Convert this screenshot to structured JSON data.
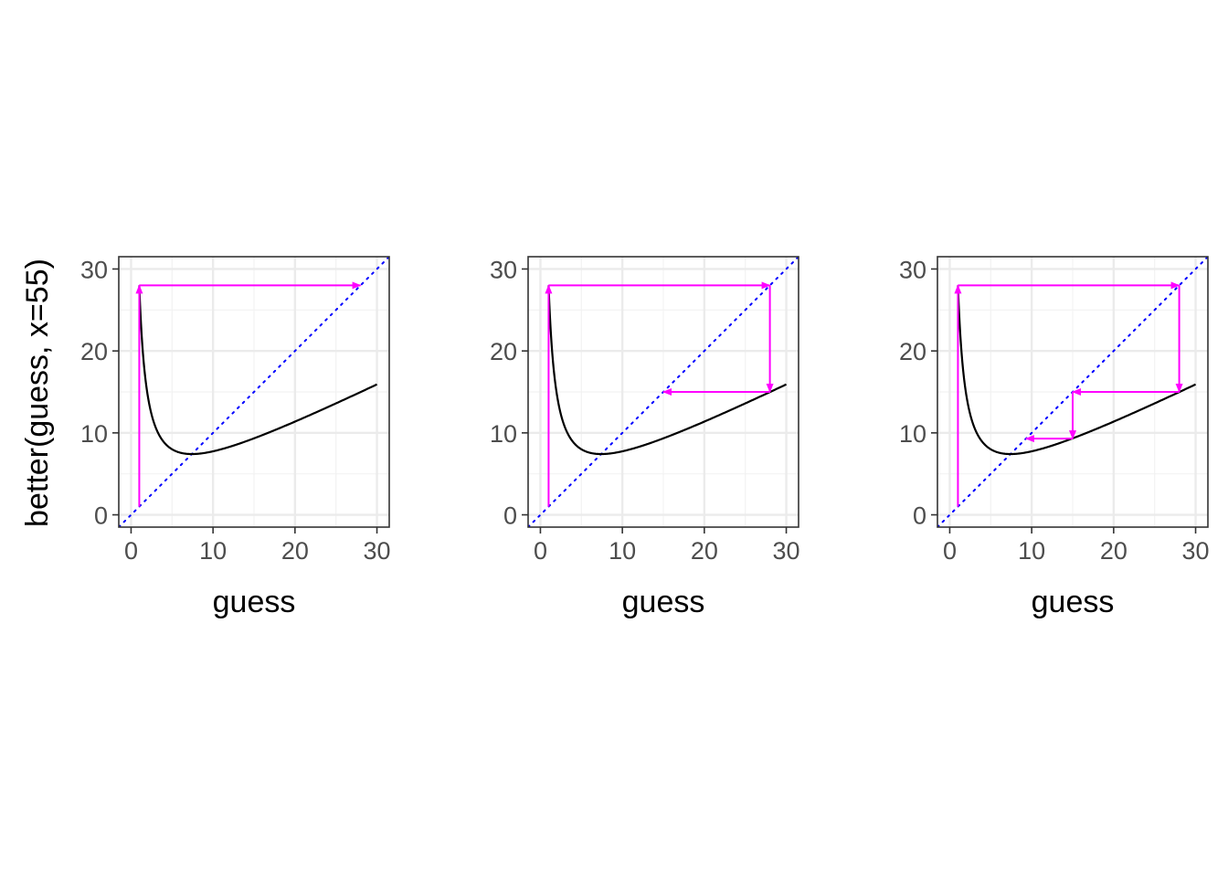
{
  "figure": {
    "ylabel": "better(guess, x=55)"
  },
  "chart_data": [
    {
      "type": "line",
      "title": "",
      "xlabel": "guess",
      "ylabel": "better(guess, x=55)",
      "xlim": [
        -1.5,
        31.5
      ],
      "ylim": [
        -1.5,
        31.5
      ],
      "x_ticks": [
        "0",
        "10",
        "20",
        "30"
      ],
      "y_ticks": [
        "0",
        "10",
        "20",
        "30"
      ],
      "grid": true,
      "curve": {
        "function": "better(guess, x=55)",
        "x_range": [
          1,
          30
        ]
      },
      "identity_line": {
        "style": "dotted",
        "color": "#0000ff"
      },
      "steps": [
        {
          "from": [
            1,
            1
          ],
          "to": [
            1,
            28
          ]
        },
        {
          "from": [
            1,
            28
          ],
          "to": [
            28,
            28
          ]
        }
      ],
      "colors": {
        "curve": "#000000",
        "steps": "#ff00ff",
        "identity": "#0000ff"
      }
    },
    {
      "type": "line",
      "title": "",
      "xlabel": "guess",
      "ylabel": "",
      "xlim": [
        -1.5,
        31.5
      ],
      "ylim": [
        -1.5,
        31.5
      ],
      "x_ticks": [
        "0",
        "10",
        "20",
        "30"
      ],
      "y_ticks": [
        "0",
        "10",
        "20",
        "30"
      ],
      "grid": true,
      "curve": {
        "function": "better(guess, x=55)",
        "x_range": [
          1,
          30
        ]
      },
      "identity_line": {
        "style": "dotted",
        "color": "#0000ff"
      },
      "steps": [
        {
          "from": [
            1,
            1
          ],
          "to": [
            1,
            28
          ]
        },
        {
          "from": [
            1,
            28
          ],
          "to": [
            28,
            28
          ]
        },
        {
          "from": [
            28,
            28
          ],
          "to": [
            28,
            15
          ]
        },
        {
          "from": [
            28,
            15
          ],
          "to": [
            15,
            15
          ]
        }
      ],
      "colors": {
        "curve": "#000000",
        "steps": "#ff00ff",
        "identity": "#0000ff"
      }
    },
    {
      "type": "line",
      "title": "",
      "xlabel": "guess",
      "ylabel": "",
      "xlim": [
        -1.5,
        31.5
      ],
      "ylim": [
        -1.5,
        31.5
      ],
      "x_ticks": [
        "0",
        "10",
        "20",
        "30"
      ],
      "y_ticks": [
        "0",
        "10",
        "20",
        "30"
      ],
      "grid": true,
      "curve": {
        "function": "better(guess, x=55)",
        "x_range": [
          1,
          30
        ]
      },
      "identity_line": {
        "style": "dotted",
        "color": "#0000ff"
      },
      "steps": [
        {
          "from": [
            1,
            1
          ],
          "to": [
            1,
            28
          ]
        },
        {
          "from": [
            1,
            28
          ],
          "to": [
            28,
            28
          ]
        },
        {
          "from": [
            28,
            28
          ],
          "to": [
            28,
            15
          ]
        },
        {
          "from": [
            28,
            15
          ],
          "to": [
            15,
            15
          ]
        },
        {
          "from": [
            15,
            15
          ],
          "to": [
            15,
            9.3
          ]
        },
        {
          "from": [
            15,
            9.3
          ],
          "to": [
            9.3,
            9.3
          ]
        }
      ],
      "colors": {
        "curve": "#000000",
        "steps": "#ff00ff",
        "identity": "#0000ff"
      }
    }
  ]
}
